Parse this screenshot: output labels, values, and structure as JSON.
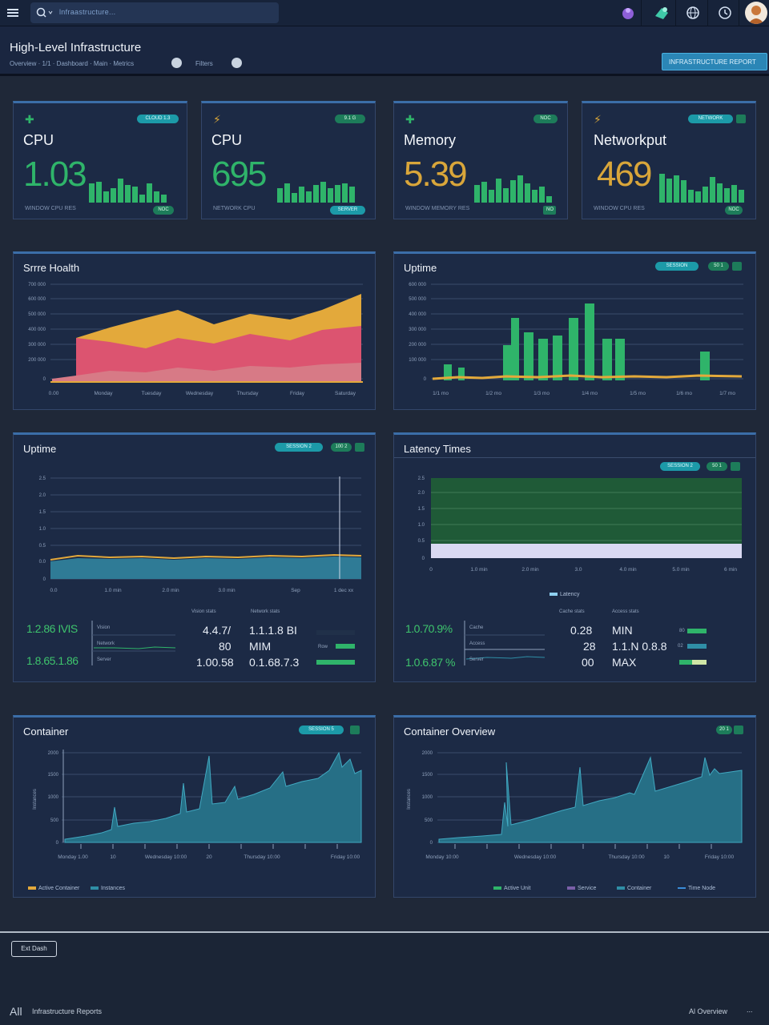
{
  "topbar": {
    "search_text": "lnfraastructure..."
  },
  "header": {
    "title": "High-Level Infrastructure",
    "sub1": "Overview  ·  1/1 · Dashboard  ·  Main  ·  Metrics",
    "sub2": "Filters",
    "action_label": "INFRASTRUCTURE REPORT"
  },
  "kpis": [
    {
      "title": "CPU",
      "value": "1.03",
      "pill": "CLOUD 1.3",
      "foot": "WINDOW CPU RES",
      "foot_pill": "NOC",
      "color": "#2fb46a"
    },
    {
      "title": "CPU",
      "value": "695",
      "pill": "9.1 G",
      "foot": "NETWORK CPU",
      "foot_pill": "SERVER",
      "color": "#2fb46a"
    },
    {
      "title": "Memory",
      "value": "5.39",
      "pill": "NOC",
      "foot": "WINDOW MEMORY RES",
      "foot_pill": "NO",
      "color": "#d9a63a"
    },
    {
      "title": "Networkput",
      "value": "469",
      "pill": "NETWORK",
      "foot": "WINDOW CPU RES",
      "foot_pill": "NOC",
      "color": "#d9a63a"
    }
  ],
  "panels": {
    "health": {
      "title": "Srrre Hoalth",
      "y_ticks": [
        "0",
        "100 000",
        "200 000",
        "300 000",
        "400 000",
        "500 000",
        "600 000",
        "700 000"
      ],
      "x_ticks": [
        "0.00",
        "Monday",
        "Tuesday",
        "Wednesday",
        "Thursday",
        "Friday",
        "Saturday"
      ]
    },
    "uptime1": {
      "title": "Uptime",
      "pill1": "SESSION",
      "pill2": "50 1",
      "y_ticks": [
        "0",
        "100 000",
        "200 000",
        "300 000",
        "400 000",
        "500 000",
        "600 000"
      ],
      "x_ticks": [
        "1/1 mo",
        "1/2 mo",
        "1/3 mo",
        "1/4 mo",
        "1/5 mo",
        "1/6 mo",
        "1/7 mo"
      ]
    },
    "uptime2": {
      "title": "Uptime",
      "pill1": "SESSION 2",
      "pill2": "100 2",
      "y_ticks": [
        "0",
        "0.0",
        "0.5",
        "1.0",
        "1.5",
        "2.0",
        "2.5"
      ],
      "x_ticks": [
        "0.0",
        "1.0 min",
        "2.0 min",
        "3.0 min",
        "Sep",
        "1 dec xx"
      ],
      "stats": {
        "big1": "1.2.86 IVIS",
        "big2": "1.8.65.1.86",
        "mini_labels": [
          "Vision",
          "Network",
          "Server"
        ],
        "h1": "Vision stats",
        "h2": "Network stats",
        "v1": "4.4.7/",
        "v2": "80",
        "v3": "1.00.58",
        "w1": "1.1.1.8 BI",
        "w2": "MIM",
        "w3": "0.1.68.7.3",
        "row_label": "Row"
      }
    },
    "latency": {
      "title": "Latency Times",
      "pill1": "SESSION 2",
      "pill2": "50 1",
      "y_ticks": [
        "0",
        "0.5",
        "1.0",
        "1.5",
        "2.0",
        "2.5"
      ],
      "x_ticks": [
        "0",
        "1.0 min",
        "2.0 min",
        "3.0",
        "4.0 min",
        "5.0 min",
        "6 min"
      ],
      "legend": "Latency",
      "stats": {
        "big1": "1.0.70.9%",
        "big2": "1.0.6.87 %",
        "mini_labels": [
          "Cache",
          "Access",
          "Server"
        ],
        "h1": "Cache stats",
        "h2": "Access stats",
        "v1": "0.28",
        "v2": "28",
        "v3": "00",
        "w1": "MIN",
        "w2": "1.1.N 0.8.8",
        "w3": "MAX",
        "r1": "80",
        "r2": "02"
      }
    },
    "container": {
      "title": "Container",
      "pill1": "SESSION 5",
      "ylabel": "Instances",
      "y_ticks": [
        "0",
        "500",
        "1000",
        "1500",
        "2000"
      ],
      "x_ticks": [
        "Monday 1.00",
        "10",
        "Wednesday 10:00",
        "20",
        "Thursday 10:00",
        "Friday 10:00"
      ],
      "legend1": "Active Container",
      "legend2": "Instances"
    },
    "overview": {
      "title": "Container Overview",
      "pill1": "20 1",
      "ylabel": "Instances",
      "y_ticks": [
        "0",
        "500",
        "1000",
        "1500",
        "2000"
      ],
      "x_ticks": [
        "Monday 10:00",
        "Wednesday 10:00",
        "Thursday 10:00",
        "10",
        "Friday 10:00"
      ],
      "legend1": "Active Unit",
      "legend2": "Service",
      "legend3": "Container",
      "legend4": "Time Node"
    }
  },
  "footer": {
    "button": "Ext Dash",
    "left": "All",
    "left2": "Infrastructure Reports",
    "right": "Al Overview",
    "dots": "..."
  },
  "colors": {
    "green": "#2fb46a",
    "amber": "#d9a63a",
    "pink": "#d8536a",
    "teal": "#2f8ea6"
  }
}
